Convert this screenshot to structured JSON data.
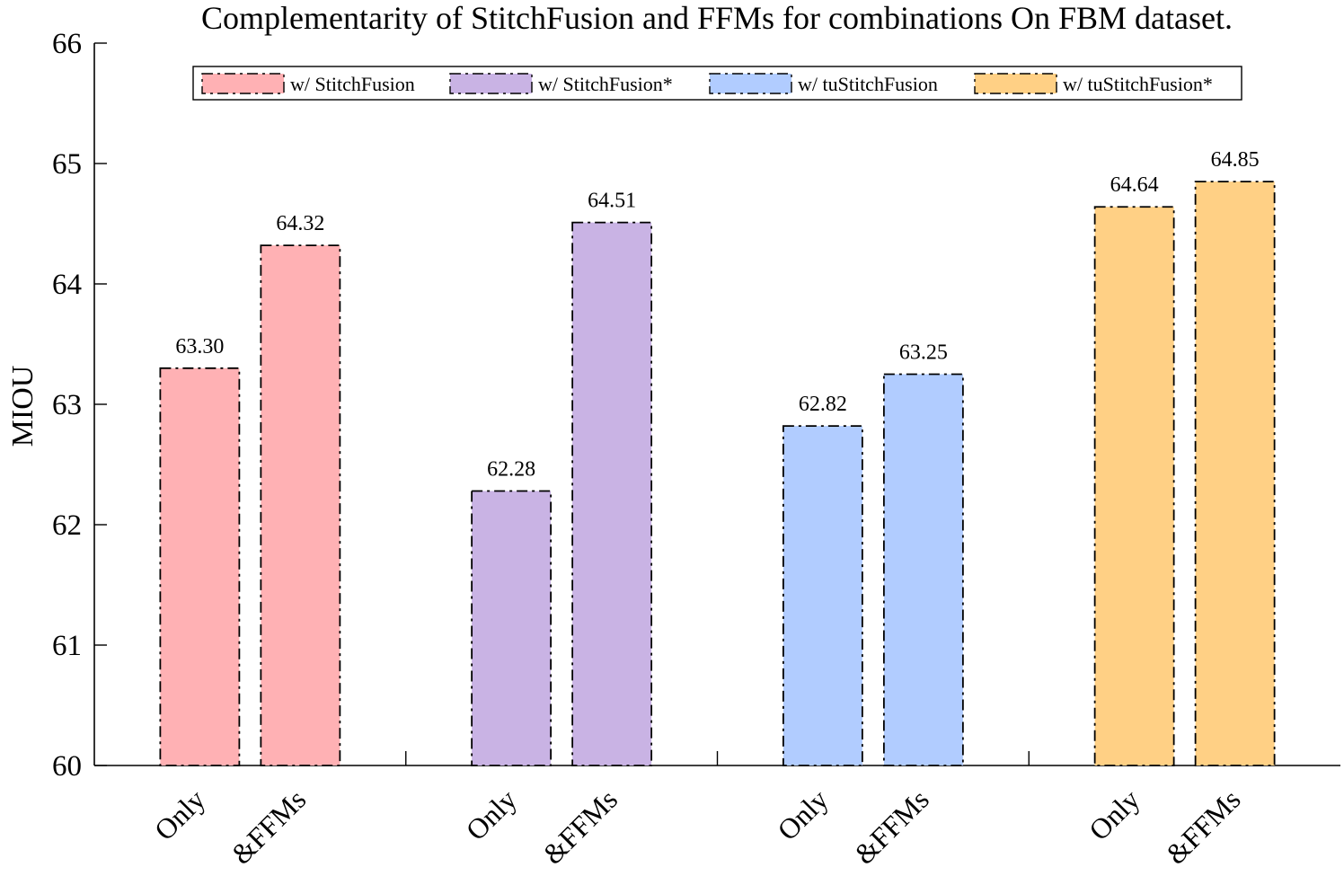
{
  "chart_data": {
    "type": "bar",
    "title": "Complementarity of StitchFusion and FFMs for combinations On FBM dataset.",
    "ylabel": "MIOU",
    "xlabel": "",
    "ylim": [
      60,
      66
    ],
    "yticks": [
      "60",
      "61",
      "62",
      "63",
      "64",
      "65",
      "66"
    ],
    "grid": false,
    "legend_position": "top",
    "series": [
      {
        "name": "w/ StitchFusion",
        "color": "#FFB1B4",
        "categories": [
          "Only",
          "&FFMs"
        ],
        "values": [
          63.3,
          64.32
        ],
        "labels": [
          "63.30",
          "64.32"
        ]
      },
      {
        "name": "w/ StitchFusion*",
        "color": "#C9B3E4",
        "categories": [
          "Only",
          "&FFMs"
        ],
        "values": [
          62.28,
          64.51
        ],
        "labels": [
          "62.28",
          "64.51"
        ]
      },
      {
        "name": "w/ tuStitchFusion",
        "color": "#B1CCFF",
        "categories": [
          "Only",
          "&FFMs"
        ],
        "values": [
          62.82,
          63.25
        ],
        "labels": [
          "62.82",
          "63.25"
        ]
      },
      {
        "name": "w/ tuStitchFusion*",
        "color": "#FFD085",
        "categories": [
          "Only",
          "&FFMs"
        ],
        "values": [
          64.64,
          64.85
        ],
        "labels": [
          "64.64",
          "64.85"
        ]
      }
    ]
  }
}
